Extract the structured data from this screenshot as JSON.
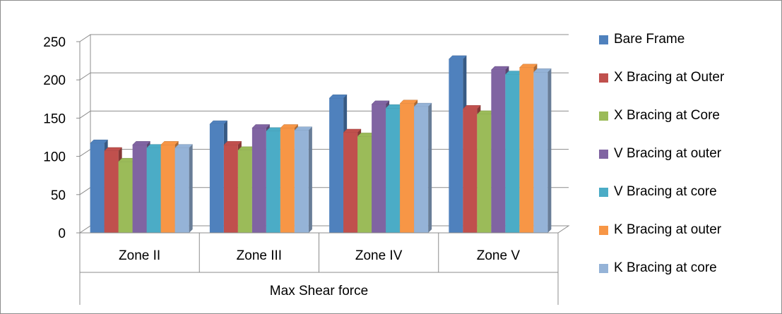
{
  "chart_data": {
    "type": "bar",
    "categories": [
      "Zone II",
      "Zone III",
      "Zone IV",
      "Zone V"
    ],
    "category_group_label": "Max Shear force",
    "ylim": [
      0,
      250
    ],
    "yticks": [
      0,
      50,
      100,
      150,
      200,
      250
    ],
    "grid": true,
    "legend_position": "right",
    "series": [
      {
        "name": "Bare Frame",
        "color": "#4F81BD",
        "values": [
          117,
          142,
          176,
          227
        ]
      },
      {
        "name": "X Bracing at Outer",
        "color": "#C0504D",
        "values": [
          107,
          115,
          131,
          162
        ]
      },
      {
        "name": "X Bracing at Core",
        "color": "#9BBB59",
        "values": [
          93,
          108,
          126,
          155
        ]
      },
      {
        "name": "V Bracing at outer",
        "color": "#8064A2",
        "values": [
          115,
          137,
          168,
          213
        ]
      },
      {
        "name": "V Bracing at core",
        "color": "#4BACC6",
        "values": [
          111,
          133,
          163,
          207
        ]
      },
      {
        "name": "K Bracing at outer",
        "color": "#F79646",
        "values": [
          115,
          137,
          169,
          216
        ]
      },
      {
        "name": "K Bracing at core",
        "color": "#95B3D7",
        "values": [
          111,
          134,
          165,
          210
        ]
      }
    ]
  }
}
